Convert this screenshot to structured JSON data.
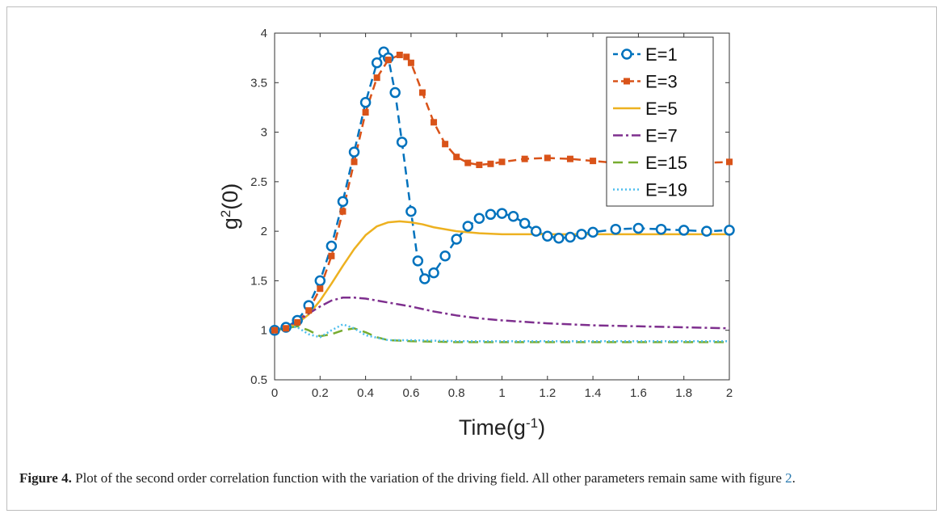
{
  "chart_data": {
    "type": "line",
    "xlabel": "Time(g",
    "xlabel_sup": "-1",
    "xlabel_end": ")",
    "ylabel": "g",
    "ylabel_sup": "2",
    "ylabel_end": "(0)",
    "xlim": [
      0,
      2
    ],
    "ylim": [
      0.5,
      4
    ],
    "xticks": [
      0,
      0.2,
      0.4,
      0.6,
      0.8,
      1,
      1.2,
      1.4,
      1.6,
      1.8,
      2
    ],
    "xtick_labels": [
      "0",
      "0.2",
      "0.4",
      "0.6",
      "0.8",
      "1",
      "1.2",
      "1.4",
      "1.6",
      "1.8",
      "2"
    ],
    "yticks": [
      0.5,
      1,
      1.5,
      2,
      2.5,
      3,
      3.5,
      4
    ],
    "ytick_labels": [
      "0.5",
      "1",
      "1.5",
      "2",
      "2.5",
      "3",
      "3.5",
      "4"
    ],
    "grid": false,
    "legend_position": "top-right",
    "series": [
      {
        "name": "E=1",
        "color": "#0072BD",
        "style": "dashed-circle",
        "x": [
          0,
          0.05,
          0.1,
          0.15,
          0.2,
          0.25,
          0.3,
          0.35,
          0.4,
          0.45,
          0.48,
          0.5,
          0.53,
          0.56,
          0.6,
          0.63,
          0.66,
          0.7,
          0.75,
          0.8,
          0.85,
          0.9,
          0.95,
          1.0,
          1.05,
          1.1,
          1.15,
          1.2,
          1.25,
          1.3,
          1.35,
          1.4,
          1.5,
          1.6,
          1.7,
          1.8,
          1.9,
          2.0
        ],
        "y": [
          1.0,
          1.03,
          1.1,
          1.25,
          1.5,
          1.85,
          2.3,
          2.8,
          3.3,
          3.7,
          3.81,
          3.75,
          3.4,
          2.9,
          2.2,
          1.7,
          1.52,
          1.58,
          1.75,
          1.92,
          2.05,
          2.13,
          2.17,
          2.18,
          2.15,
          2.08,
          2.0,
          1.95,
          1.93,
          1.94,
          1.97,
          1.99,
          2.02,
          2.03,
          2.02,
          2.01,
          2.0,
          2.01
        ]
      },
      {
        "name": "E=3",
        "color": "#D95319",
        "style": "dashed-square",
        "x": [
          0,
          0.05,
          0.1,
          0.15,
          0.2,
          0.25,
          0.3,
          0.35,
          0.4,
          0.45,
          0.5,
          0.55,
          0.58,
          0.6,
          0.65,
          0.7,
          0.75,
          0.8,
          0.85,
          0.9,
          0.95,
          1.0,
          1.1,
          1.2,
          1.3,
          1.4,
          1.5,
          1.6,
          1.7,
          1.8,
          1.9,
          2.0
        ],
        "y": [
          1.0,
          1.02,
          1.08,
          1.2,
          1.42,
          1.75,
          2.2,
          2.7,
          3.2,
          3.55,
          3.73,
          3.78,
          3.76,
          3.7,
          3.4,
          3.1,
          2.88,
          2.75,
          2.69,
          2.67,
          2.68,
          2.7,
          2.73,
          2.74,
          2.73,
          2.71,
          2.69,
          2.68,
          2.68,
          2.69,
          2.69,
          2.7
        ]
      },
      {
        "name": "E=5",
        "color": "#EDB120",
        "style": "solid",
        "x": [
          0,
          0.05,
          0.1,
          0.15,
          0.2,
          0.25,
          0.3,
          0.35,
          0.4,
          0.45,
          0.5,
          0.55,
          0.6,
          0.65,
          0.7,
          0.8,
          0.9,
          1.0,
          1.2,
          1.4,
          1.6,
          1.8,
          2.0
        ],
        "y": [
          1.0,
          1.02,
          1.07,
          1.16,
          1.3,
          1.47,
          1.65,
          1.82,
          1.96,
          2.05,
          2.09,
          2.1,
          2.09,
          2.07,
          2.04,
          2.0,
          1.98,
          1.97,
          1.97,
          1.97,
          1.97,
          1.97,
          1.97
        ]
      },
      {
        "name": "E=7",
        "color": "#7E2F8E",
        "style": "dash-dot",
        "x": [
          0,
          0.05,
          0.1,
          0.15,
          0.2,
          0.25,
          0.3,
          0.35,
          0.4,
          0.5,
          0.6,
          0.7,
          0.8,
          0.9,
          1.0,
          1.2,
          1.4,
          1.6,
          1.8,
          2.0
        ],
        "y": [
          1.0,
          1.03,
          1.09,
          1.17,
          1.24,
          1.3,
          1.33,
          1.33,
          1.32,
          1.28,
          1.24,
          1.19,
          1.15,
          1.12,
          1.1,
          1.07,
          1.05,
          1.04,
          1.03,
          1.02
        ]
      },
      {
        "name": "E=15",
        "color": "#77AC30",
        "style": "dashed",
        "x": [
          0,
          0.05,
          0.1,
          0.15,
          0.2,
          0.25,
          0.3,
          0.35,
          0.4,
          0.45,
          0.5,
          0.6,
          0.8,
          1.0,
          1.2,
          1.4,
          1.6,
          1.8,
          2.0
        ],
        "y": [
          1.0,
          1.02,
          1.04,
          1.0,
          0.94,
          0.96,
          1.0,
          1.02,
          0.98,
          0.93,
          0.9,
          0.89,
          0.88,
          0.88,
          0.88,
          0.88,
          0.88,
          0.88,
          0.88
        ]
      },
      {
        "name": "E=19",
        "color": "#4DBEEE",
        "style": "dotted",
        "x": [
          0,
          0.05,
          0.1,
          0.15,
          0.2,
          0.25,
          0.3,
          0.35,
          0.4,
          0.5,
          0.6,
          0.8,
          1.0,
          1.2,
          1.4,
          1.6,
          1.8,
          2.0
        ],
        "y": [
          1.0,
          1.04,
          1.03,
          0.96,
          0.93,
          1.0,
          1.06,
          1.02,
          0.95,
          0.9,
          0.9,
          0.89,
          0.89,
          0.89,
          0.89,
          0.89,
          0.89,
          0.89
        ]
      }
    ]
  },
  "caption": {
    "label": "Figure 4.",
    "text": " Plot of the second order correlation function with the variation of the driving field. All other parameters remain same with figure ",
    "ref": "2",
    "end": "."
  }
}
